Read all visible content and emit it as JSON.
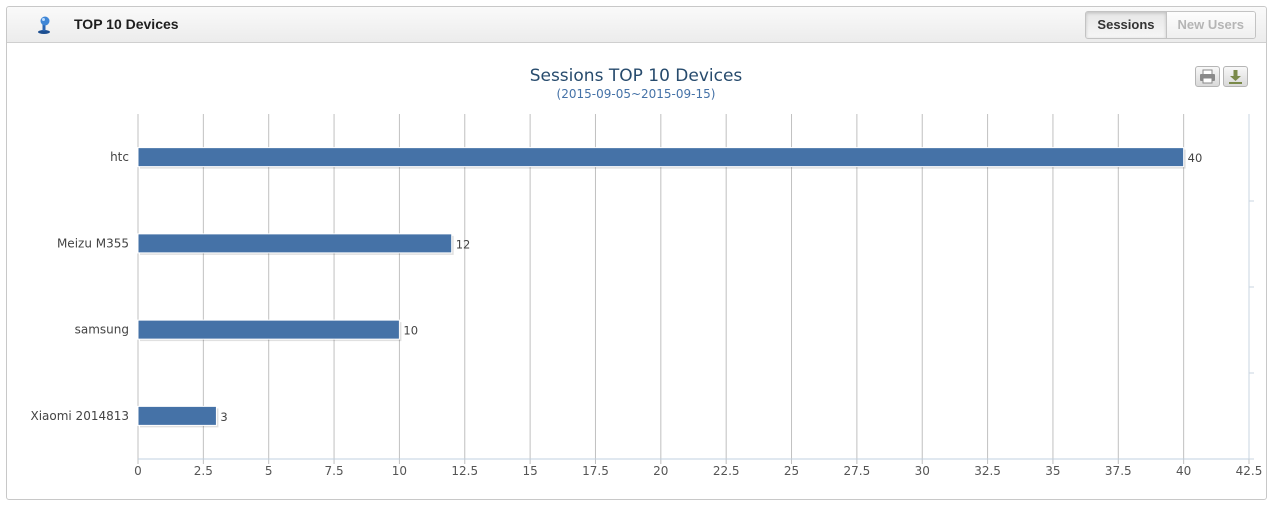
{
  "panel": {
    "title": "TOP 10 Devices",
    "icon": "pushpin-icon",
    "tabs": [
      {
        "label": "Sessions",
        "active": true
      },
      {
        "label": "New Users",
        "active": false
      }
    ]
  },
  "toolbar": {
    "print_icon": "printer-icon",
    "download_icon": "download-icon"
  },
  "colors": {
    "bar": "#4572a7",
    "title": "#274b6d",
    "grid": "#c0c0c0"
  },
  "chart_data": {
    "type": "bar",
    "orientation": "horizontal",
    "title": "Sessions TOP 10 Devices",
    "subtitle": "(2015-09-05~2015-09-15)",
    "categories": [
      "htc",
      "Meizu M355",
      "samsung",
      "Xiaomi 2014813"
    ],
    "values": [
      40,
      12,
      10,
      3
    ],
    "xlim": [
      0,
      42.5
    ],
    "ticks": [
      "0",
      "2.5",
      "5",
      "7.5",
      "10",
      "12.5",
      "15",
      "17.5",
      "20",
      "22.5",
      "25",
      "27.5",
      "30",
      "32.5",
      "35",
      "37.5",
      "40",
      "42.5"
    ],
    "grid": true,
    "data_labels": true
  }
}
